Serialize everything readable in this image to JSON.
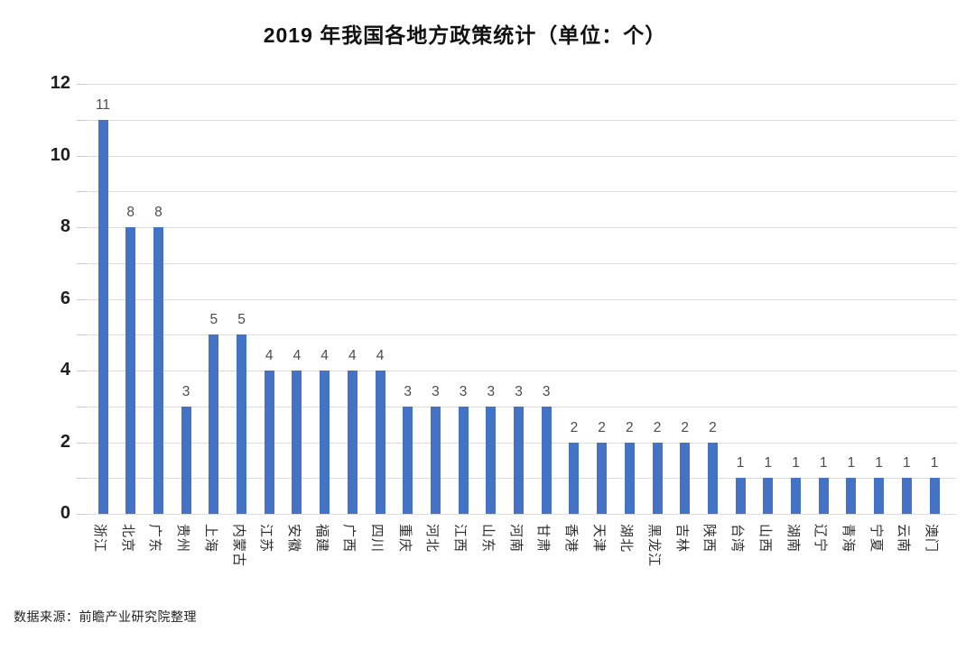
{
  "chart": {
    "title": "2019 年我国各地方政策统计（单位：个）",
    "source": "数据来源：前瞻产业研究院整理"
  },
  "chart_data": {
    "type": "bar",
    "title": "2019 年我国各地方政策统计（单位：个）",
    "categories": [
      "浙江",
      "北京",
      "广东",
      "贵州",
      "上海",
      "内蒙古",
      "江苏",
      "安徽",
      "福建",
      "广西",
      "四川",
      "重庆",
      "河北",
      "江西",
      "山东",
      "河南",
      "甘肃",
      "香港",
      "天津",
      "湖北",
      "黑龙江",
      "吉林",
      "陕西",
      "台湾",
      "山西",
      "湖南",
      "辽宁",
      "青海",
      "宁夏",
      "云南",
      "澳门"
    ],
    "values": [
      11,
      8,
      8,
      3,
      5,
      5,
      4,
      4,
      4,
      4,
      4,
      3,
      3,
      3,
      3,
      3,
      3,
      2,
      2,
      2,
      2,
      2,
      2,
      1,
      1,
      1,
      1,
      1,
      1,
      1,
      1
    ],
    "xlabel": "",
    "ylabel": "",
    "ylim": [
      0,
      12
    ],
    "y_major_tick_labels": [
      0,
      2,
      4,
      6,
      8,
      10,
      12
    ],
    "y_minor_tick_interval": 1,
    "grid": true,
    "grid_interval": 1,
    "data_labels": true,
    "legend": "none",
    "x_label_rotation_deg": 90,
    "source": "数据来源：前瞻产业研究院整理"
  },
  "colors": {
    "bar": "#4472C4",
    "gridline": "#DCDCDC",
    "tick": "#C9C9C9",
    "value_label": "#4D4D4D",
    "y_axis_label": "#1F1F1F",
    "x_axis_label": "#2E2E2E",
    "title": "#111111"
  }
}
